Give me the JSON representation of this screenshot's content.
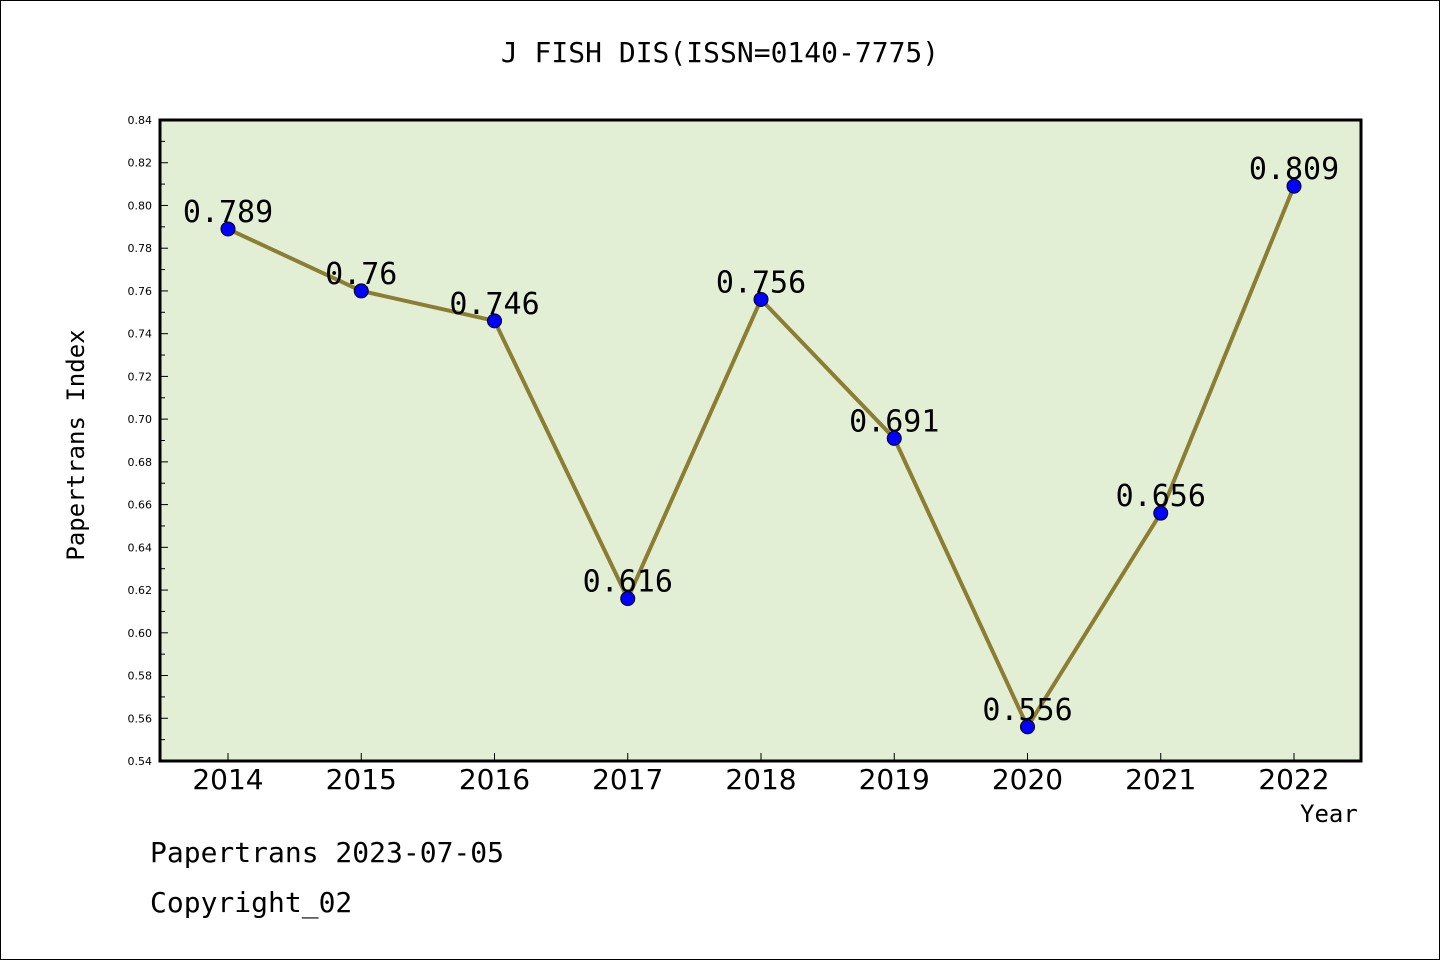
{
  "chart_data": {
    "type": "line",
    "title": "J FISH DIS(ISSN=0140-7775)",
    "xlabel": "Year",
    "ylabel": "Papertrans Index",
    "categories": [
      "2014",
      "2015",
      "2016",
      "2017",
      "2018",
      "2019",
      "2020",
      "2021",
      "2022"
    ],
    "series": [
      {
        "values": [
          0.789,
          0.76,
          0.746,
          0.616,
          0.756,
          0.691,
          0.556,
          0.656,
          0.809
        ]
      }
    ],
    "data_labels": [
      "0.789",
      "0.76",
      "0.746",
      "0.616",
      "0.756",
      "0.691",
      "0.556",
      "0.656",
      "0.809"
    ],
    "ylim": [
      0.54,
      0.84
    ],
    "yticks": [
      "0.54",
      "0.56",
      "0.58",
      "0.60",
      "0.62",
      "0.64",
      "0.66",
      "0.68",
      "0.70",
      "0.72",
      "0.74",
      "0.76",
      "0.78",
      "0.80",
      "0.82",
      "0.84"
    ],
    "grid": false,
    "colors": {
      "plot_background": "#e2efd5",
      "line": "#8b7d32",
      "marker": "#0000ff"
    }
  },
  "footer": {
    "line1": "Papertrans 2023-07-05",
    "line2": "Copyright_02"
  }
}
